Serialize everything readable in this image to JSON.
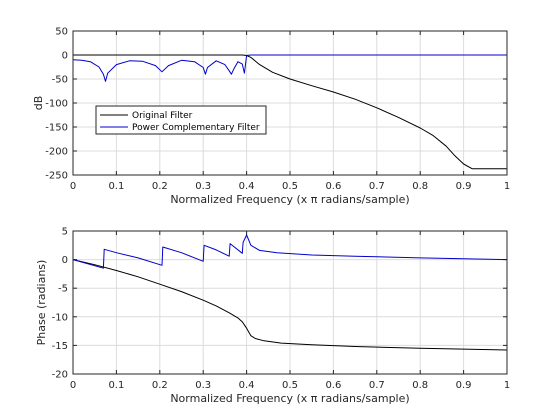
{
  "chart_data": [
    {
      "type": "line",
      "xlabel": "Normalized Frequency (x π radians/sample)",
      "ylabel": "dB",
      "xlim": [
        0,
        1
      ],
      "ylim": [
        -250,
        50
      ],
      "x_ticks": [
        "0",
        "0.1",
        "0.2",
        "0.3",
        "0.4",
        "0.5",
        "0.6",
        "0.7",
        "0.8",
        "0.9",
        "1"
      ],
      "y_ticks": [
        "50",
        "0",
        "-50",
        "-100",
        "-150",
        "-200",
        "-250"
      ],
      "grid": true,
      "legend_position": "lower-left",
      "series": [
        {
          "name": "Original Filter",
          "color": "#000000",
          "x": [
            0,
            0.1,
            0.2,
            0.3,
            0.35,
            0.39,
            0.4,
            0.41,
            0.43,
            0.46,
            0.5,
            0.55,
            0.6,
            0.65,
            0.7,
            0.75,
            0.8,
            0.83,
            0.86,
            0.88,
            0.9,
            0.92,
            1.0
          ],
          "values": [
            0,
            0,
            0,
            0,
            0,
            0,
            -1,
            -5,
            -20,
            -36,
            -50,
            -64,
            -77,
            -92,
            -110,
            -130,
            -152,
            -168,
            -190,
            -210,
            -227,
            -237,
            -237
          ]
        },
        {
          "name": "Power Complementary Filter",
          "color": "#0000cc",
          "x": [
            0,
            0.02,
            0.04,
            0.06,
            0.07,
            0.075,
            0.08,
            0.1,
            0.13,
            0.16,
            0.19,
            0.205,
            0.22,
            0.25,
            0.28,
            0.3,
            0.305,
            0.31,
            0.33,
            0.35,
            0.36,
            0.365,
            0.37,
            0.38,
            0.39,
            0.395,
            0.4,
            0.41,
            0.42,
            0.5,
            0.7,
            1.0
          ],
          "values": [
            -10,
            -11,
            -14,
            -25,
            -40,
            -55,
            -38,
            -20,
            -12,
            -13,
            -22,
            -35,
            -22,
            -11,
            -14,
            -26,
            -40,
            -26,
            -12,
            -20,
            -33,
            -40,
            -30,
            -14,
            -19,
            -38,
            -1,
            0,
            0,
            0,
            0,
            0
          ]
        }
      ]
    },
    {
      "type": "line",
      "xlabel": "Normalized Frequency (x π radians/sample)",
      "ylabel": "Phase (radians)",
      "xlim": [
        0,
        1
      ],
      "ylim": [
        -20,
        5
      ],
      "x_ticks": [
        "0",
        "0.1",
        "0.2",
        "0.3",
        "0.4",
        "0.5",
        "0.6",
        "0.7",
        "0.8",
        "0.9",
        "1"
      ],
      "y_ticks": [
        "5",
        "0",
        "-5",
        "-10",
        "-15",
        "-20"
      ],
      "grid": true,
      "series": [
        {
          "color": "#000000",
          "x": [
            0,
            0.05,
            0.1,
            0.15,
            0.2,
            0.25,
            0.3,
            0.33,
            0.36,
            0.38,
            0.39,
            0.4,
            0.41,
            0.42,
            0.44,
            0.48,
            0.55,
            0.65,
            0.8,
            1.0
          ],
          "values": [
            0,
            -0.9,
            -1.9,
            -3.0,
            -4.3,
            -5.6,
            -7.1,
            -8.1,
            -9.3,
            -10.2,
            -10.9,
            -12.0,
            -13.3,
            -13.8,
            -14.2,
            -14.6,
            -14.9,
            -15.2,
            -15.5,
            -15.8
          ]
        },
        {
          "color": "#0000cc",
          "x": [
            0,
            0.07,
            0.072,
            0.1,
            0.15,
            0.205,
            0.207,
            0.25,
            0.3,
            0.302,
            0.33,
            0.36,
            0.362,
            0.39,
            0.392,
            0.4,
            0.41,
            0.43,
            0.47,
            0.55,
            0.65,
            0.8,
            1.0
          ],
          "values": [
            0,
            -1.5,
            1.8,
            1.2,
            0.3,
            -1.0,
            2.2,
            1.2,
            -0.3,
            2.5,
            1.7,
            0.6,
            2.8,
            1.1,
            3.0,
            4.3,
            2.5,
            1.6,
            1.2,
            0.8,
            0.6,
            0.3,
            0.0
          ]
        }
      ]
    }
  ]
}
